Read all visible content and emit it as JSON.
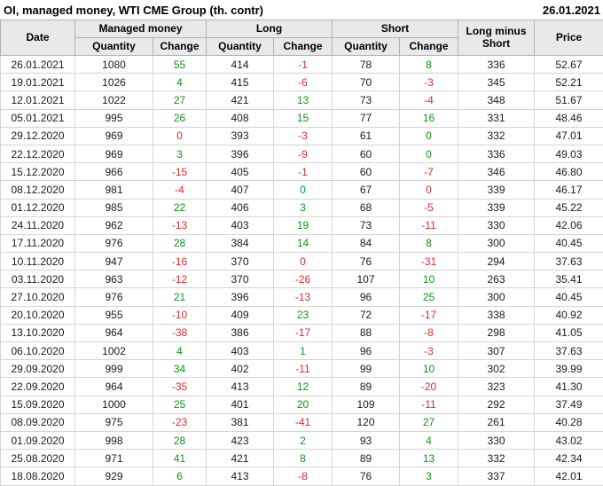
{
  "header": {
    "title": "OI, managed money, WTI CME Group (th. contr)",
    "report_date": "26.01.2021"
  },
  "colors": {
    "positive": "#0c9618",
    "negative": "#dd2b2b",
    "header_background": "#e9e9e9",
    "body_text": "#1a1a1a",
    "grid_border": "#d4d4d4"
  },
  "table": {
    "headers": {
      "date": "Date",
      "managed_money": "Managed money",
      "long": "Long",
      "short": "Short",
      "quantity": "Quantity",
      "change": "Change",
      "long_minus_short": "Long minus Short",
      "price": "Price"
    }
  },
  "chart_data": {
    "type": "table",
    "title": "OI, managed money, WTI CME Group (th. contr)",
    "report_date": "26.01.2021",
    "columns": [
      "Date",
      "Managed money Quantity",
      "Managed money Change",
      "Long Quantity",
      "Long Change",
      "Short Quantity",
      "Short Change",
      "Long minus Short",
      "Price"
    ],
    "rows": [
      {
        "date": "26.01.2021",
        "managed_qty": 1080,
        "managed_chg": 55,
        "managed_dir": "up",
        "long_qty": 414,
        "long_chg": -1,
        "long_dir": "down",
        "short_qty": 78,
        "short_chg": 8,
        "short_dir": "up",
        "long_minus_short": 336,
        "price": "52.67"
      },
      {
        "date": "19.01.2021",
        "managed_qty": 1026,
        "managed_chg": 4,
        "managed_dir": "up",
        "long_qty": 415,
        "long_chg": -6,
        "long_dir": "down",
        "short_qty": 70,
        "short_chg": -3,
        "short_dir": "down",
        "long_minus_short": 345,
        "price": "52.21"
      },
      {
        "date": "12.01.2021",
        "managed_qty": 1022,
        "managed_chg": 27,
        "managed_dir": "up",
        "long_qty": 421,
        "long_chg": 13,
        "long_dir": "up",
        "short_qty": 73,
        "short_chg": -4,
        "short_dir": "down",
        "long_minus_short": 348,
        "price": "51.67"
      },
      {
        "date": "05.01.2021",
        "managed_qty": 995,
        "managed_chg": 26,
        "managed_dir": "up",
        "long_qty": 408,
        "long_chg": 15,
        "long_dir": "up",
        "short_qty": 77,
        "short_chg": 16,
        "short_dir": "up",
        "long_minus_short": 331,
        "price": "48.46"
      },
      {
        "date": "29.12.2020",
        "managed_qty": 969,
        "managed_chg": 0,
        "managed_dir": "down",
        "long_qty": 393,
        "long_chg": -3,
        "long_dir": "down",
        "short_qty": 61,
        "short_chg": 0,
        "short_dir": "up",
        "long_minus_short": 332,
        "price": "47.01"
      },
      {
        "date": "22.12.2020",
        "managed_qty": 969,
        "managed_chg": 3,
        "managed_dir": "up",
        "long_qty": 396,
        "long_chg": -9,
        "long_dir": "down",
        "short_qty": 60,
        "short_chg": 0,
        "short_dir": "up",
        "long_minus_short": 336,
        "price": "49.03"
      },
      {
        "date": "15.12.2020",
        "managed_qty": 966,
        "managed_chg": -15,
        "managed_dir": "down",
        "long_qty": 405,
        "long_chg": -1,
        "long_dir": "down",
        "short_qty": 60,
        "short_chg": -7,
        "short_dir": "down",
        "long_minus_short": 346,
        "price": "46.80"
      },
      {
        "date": "08.12.2020",
        "managed_qty": 981,
        "managed_chg": -4,
        "managed_dir": "down",
        "long_qty": 407,
        "long_chg": 0,
        "long_dir": "up",
        "short_qty": 67,
        "short_chg": 0,
        "short_dir": "down",
        "long_minus_short": 339,
        "price": "46.17"
      },
      {
        "date": "01.12.2020",
        "managed_qty": 985,
        "managed_chg": 22,
        "managed_dir": "up",
        "long_qty": 406,
        "long_chg": 3,
        "long_dir": "up",
        "short_qty": 68,
        "short_chg": -5,
        "short_dir": "down",
        "long_minus_short": 339,
        "price": "45.22"
      },
      {
        "date": "24.11.2020",
        "managed_qty": 962,
        "managed_chg": -13,
        "managed_dir": "down",
        "long_qty": 403,
        "long_chg": 19,
        "long_dir": "up",
        "short_qty": 73,
        "short_chg": -11,
        "short_dir": "down",
        "long_minus_short": 330,
        "price": "42.06"
      },
      {
        "date": "17.11.2020",
        "managed_qty": 976,
        "managed_chg": 28,
        "managed_dir": "up",
        "long_qty": 384,
        "long_chg": 14,
        "long_dir": "up",
        "short_qty": 84,
        "short_chg": 8,
        "short_dir": "up",
        "long_minus_short": 300,
        "price": "40.45"
      },
      {
        "date": "10.11.2020",
        "managed_qty": 947,
        "managed_chg": -16,
        "managed_dir": "down",
        "long_qty": 370,
        "long_chg": 0,
        "long_dir": "down",
        "short_qty": 76,
        "short_chg": -31,
        "short_dir": "down",
        "long_minus_short": 294,
        "price": "37.63"
      },
      {
        "date": "03.11.2020",
        "managed_qty": 963,
        "managed_chg": -12,
        "managed_dir": "down",
        "long_qty": 370,
        "long_chg": -26,
        "long_dir": "down",
        "short_qty": 107,
        "short_chg": 10,
        "short_dir": "up",
        "long_minus_short": 263,
        "price": "35.41"
      },
      {
        "date": "27.10.2020",
        "managed_qty": 976,
        "managed_chg": 21,
        "managed_dir": "up",
        "long_qty": 396,
        "long_chg": -13,
        "long_dir": "down",
        "short_qty": 96,
        "short_chg": 25,
        "short_dir": "up",
        "long_minus_short": 300,
        "price": "40.45"
      },
      {
        "date": "20.10.2020",
        "managed_qty": 955,
        "managed_chg": -10,
        "managed_dir": "down",
        "long_qty": 409,
        "long_chg": 23,
        "long_dir": "up",
        "short_qty": 72,
        "short_chg": -17,
        "short_dir": "down",
        "long_minus_short": 338,
        "price": "40.92"
      },
      {
        "date": "13.10.2020",
        "managed_qty": 964,
        "managed_chg": -38,
        "managed_dir": "down",
        "long_qty": 386,
        "long_chg": -17,
        "long_dir": "down",
        "short_qty": 88,
        "short_chg": -8,
        "short_dir": "down",
        "long_minus_short": 298,
        "price": "41.05"
      },
      {
        "date": "06.10.2020",
        "managed_qty": 1002,
        "managed_chg": 4,
        "managed_dir": "up",
        "long_qty": 403,
        "long_chg": 1,
        "long_dir": "up",
        "short_qty": 96,
        "short_chg": -3,
        "short_dir": "down",
        "long_minus_short": 307,
        "price": "37.63"
      },
      {
        "date": "29.09.2020",
        "managed_qty": 999,
        "managed_chg": 34,
        "managed_dir": "up",
        "long_qty": 402,
        "long_chg": -11,
        "long_dir": "down",
        "short_qty": 99,
        "short_chg": 10,
        "short_dir": "up",
        "long_minus_short": 302,
        "price": "39.99"
      },
      {
        "date": "22.09.2020",
        "managed_qty": 964,
        "managed_chg": -35,
        "managed_dir": "down",
        "long_qty": 413,
        "long_chg": 12,
        "long_dir": "up",
        "short_qty": 89,
        "short_chg": -20,
        "short_dir": "down",
        "long_minus_short": 323,
        "price": "41.30"
      },
      {
        "date": "15.09.2020",
        "managed_qty": 1000,
        "managed_chg": 25,
        "managed_dir": "up",
        "long_qty": 401,
        "long_chg": 20,
        "long_dir": "up",
        "short_qty": 109,
        "short_chg": -11,
        "short_dir": "down",
        "long_minus_short": 292,
        "price": "37.49"
      },
      {
        "date": "08.09.2020",
        "managed_qty": 975,
        "managed_chg": -23,
        "managed_dir": "down",
        "long_qty": 381,
        "long_chg": -41,
        "long_dir": "down",
        "short_qty": 120,
        "short_chg": 27,
        "short_dir": "up",
        "long_minus_short": 261,
        "price": "40.28"
      },
      {
        "date": "01.09.2020",
        "managed_qty": 998,
        "managed_chg": 28,
        "managed_dir": "up",
        "long_qty": 423,
        "long_chg": 2,
        "long_dir": "up",
        "short_qty": 93,
        "short_chg": 4,
        "short_dir": "up",
        "long_minus_short": 330,
        "price": "43.02"
      },
      {
        "date": "25.08.2020",
        "managed_qty": 971,
        "managed_chg": 41,
        "managed_dir": "up",
        "long_qty": 421,
        "long_chg": 8,
        "long_dir": "up",
        "short_qty": 89,
        "short_chg": 13,
        "short_dir": "up",
        "long_minus_short": 332,
        "price": "42.34"
      },
      {
        "date": "18.08.2020",
        "managed_qty": 929,
        "managed_chg": 6,
        "managed_dir": "up",
        "long_qty": 413,
        "long_chg": -8,
        "long_dir": "down",
        "short_qty": 76,
        "short_chg": 3,
        "short_dir": "up",
        "long_minus_short": 337,
        "price": "42.01"
      }
    ]
  }
}
